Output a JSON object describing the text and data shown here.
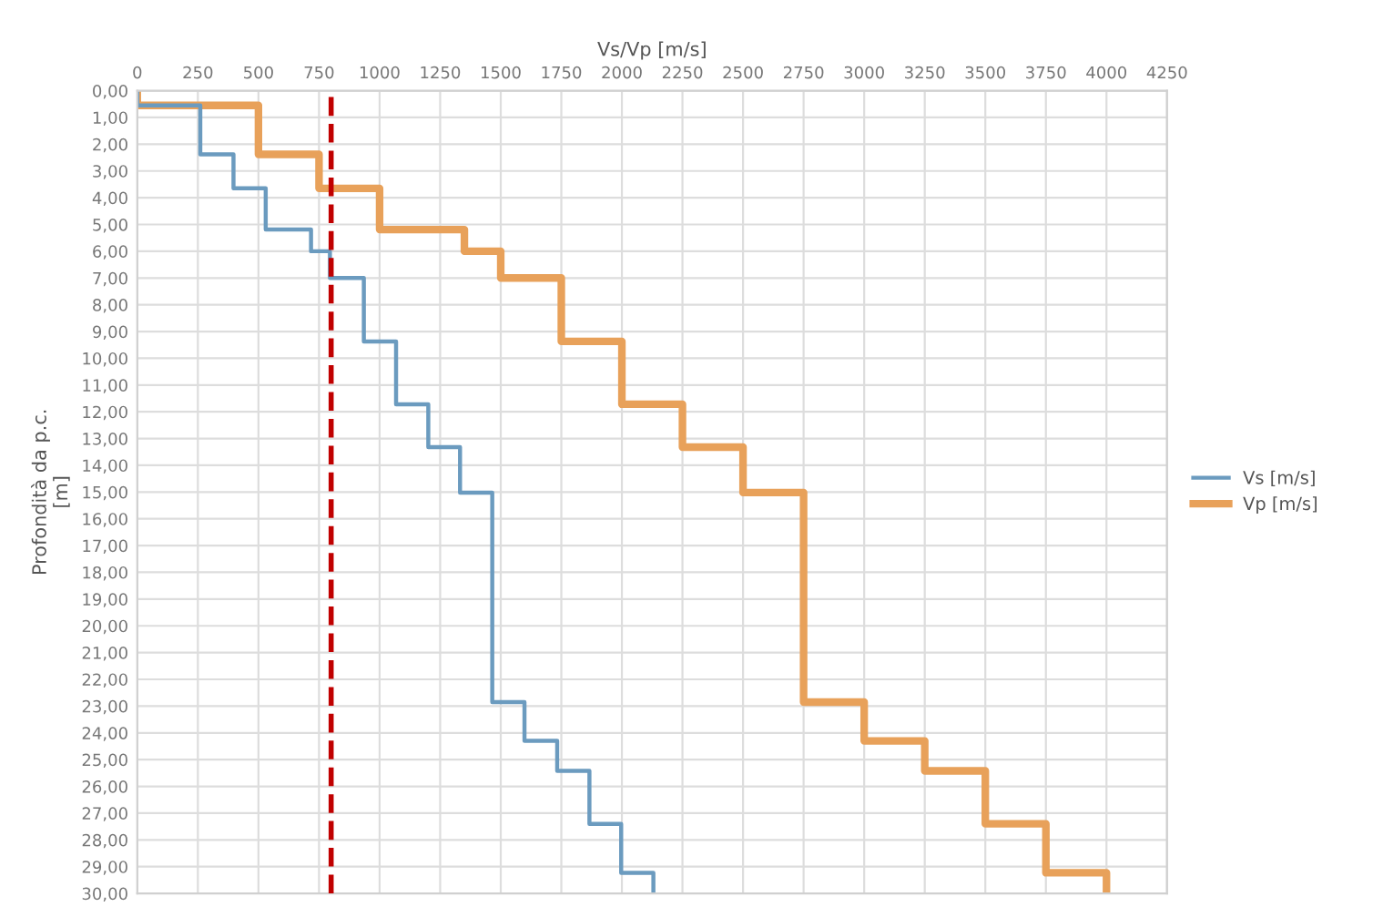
{
  "chart_data": {
    "type": "line",
    "xlabel": "Vs/Vp [m/s]",
    "ylabel": "Profondità da p.c.\n[m]",
    "series": [
      {
        "name": "Vs [m/s]",
        "color": "#6b9bbf",
        "x": [
          0,
          0,
          260,
          260,
          397,
          397,
          530,
          530,
          717,
          717,
          795,
          795,
          935,
          935,
          1068,
          1068,
          1201,
          1201,
          1332,
          1332,
          1465,
          1465,
          1598,
          1598,
          1733,
          1733,
          1866,
          1866,
          1997,
          1997,
          2130,
          2130
        ],
        "values": [
          0,
          0.55,
          0.55,
          2.38,
          2.38,
          3.65,
          3.65,
          5.19,
          5.19,
          6.0,
          6.0,
          7.0,
          7.0,
          9.37,
          9.37,
          11.72,
          11.72,
          13.32,
          13.32,
          15.02,
          15.02,
          22.85,
          22.85,
          24.3,
          24.3,
          25.42,
          25.42,
          27.4,
          27.4,
          29.23,
          29.23,
          30
        ]
      },
      {
        "name": "Vp [m/s]",
        "color": "#e8a15a",
        "x": [
          0,
          0,
          500,
          500,
          750,
          750,
          1000,
          1000,
          1350,
          1350,
          1500,
          1500,
          1750,
          1750,
          2000,
          2000,
          2250,
          2250,
          2500,
          2500,
          2750,
          2750,
          3000,
          3000,
          3250,
          3250,
          3500,
          3500,
          3750,
          3750,
          4000,
          4000
        ],
        "values": [
          0,
          0.55,
          0.55,
          2.38,
          2.38,
          3.65,
          3.65,
          5.19,
          5.19,
          6.0,
          6.0,
          7.0,
          7.0,
          9.37,
          9.37,
          11.72,
          11.72,
          13.32,
          13.32,
          15.02,
          15.02,
          22.85,
          22.85,
          24.3,
          24.3,
          25.42,
          25.42,
          27.4,
          27.4,
          29.23,
          29.23,
          30
        ]
      }
    ],
    "ref_lines": [
      {
        "axis": "x",
        "value": 800,
        "color": "#c00000",
        "line_style": "dashed"
      }
    ],
    "xlim": [
      0,
      4250
    ],
    "xticks": [
      0,
      250,
      500,
      750,
      1000,
      1250,
      1500,
      1750,
      2000,
      2250,
      2500,
      2750,
      3000,
      3250,
      3500,
      3750,
      4000,
      4250
    ],
    "ylim": [
      30,
      0
    ],
    "yticks": [
      {
        "value": 0,
        "label": "0,00"
      },
      {
        "value": 1,
        "label": "1,00"
      },
      {
        "value": 2,
        "label": "2,00"
      },
      {
        "value": 3,
        "label": "3,00"
      },
      {
        "value": 4,
        "label": "4,00"
      },
      {
        "value": 5,
        "label": "5,00"
      },
      {
        "value": 6,
        "label": "6,00"
      },
      {
        "value": 7,
        "label": "7,00"
      },
      {
        "value": 8,
        "label": "8,00"
      },
      {
        "value": 9,
        "label": "9,00"
      },
      {
        "value": 10,
        "label": "10,00"
      },
      {
        "value": 11,
        "label": "11,00"
      },
      {
        "value": 12,
        "label": "12,00"
      },
      {
        "value": 13,
        "label": "13,00"
      },
      {
        "value": 14,
        "label": "14,00"
      },
      {
        "value": 15,
        "label": "15,00"
      },
      {
        "value": 16,
        "label": "16,00"
      },
      {
        "value": 17,
        "label": "17,00"
      },
      {
        "value": 18,
        "label": "18,00"
      },
      {
        "value": 19,
        "label": "19,00"
      },
      {
        "value": 20,
        "label": "20,00"
      },
      {
        "value": 21,
        "label": "21,00"
      },
      {
        "value": 22,
        "label": "22,00"
      },
      {
        "value": 23,
        "label": "23,00"
      },
      {
        "value": 24,
        "label": "24,00"
      },
      {
        "value": 25,
        "label": "25,00"
      },
      {
        "value": 26,
        "label": "26,00"
      },
      {
        "value": 27,
        "label": "27,00"
      },
      {
        "value": 28,
        "label": "28,00"
      },
      {
        "value": 29,
        "label": "29,00"
      },
      {
        "value": 30,
        "label": "30,00"
      }
    ],
    "grid": true,
    "legend": "right",
    "marker": "none",
    "line_style": "solid"
  }
}
